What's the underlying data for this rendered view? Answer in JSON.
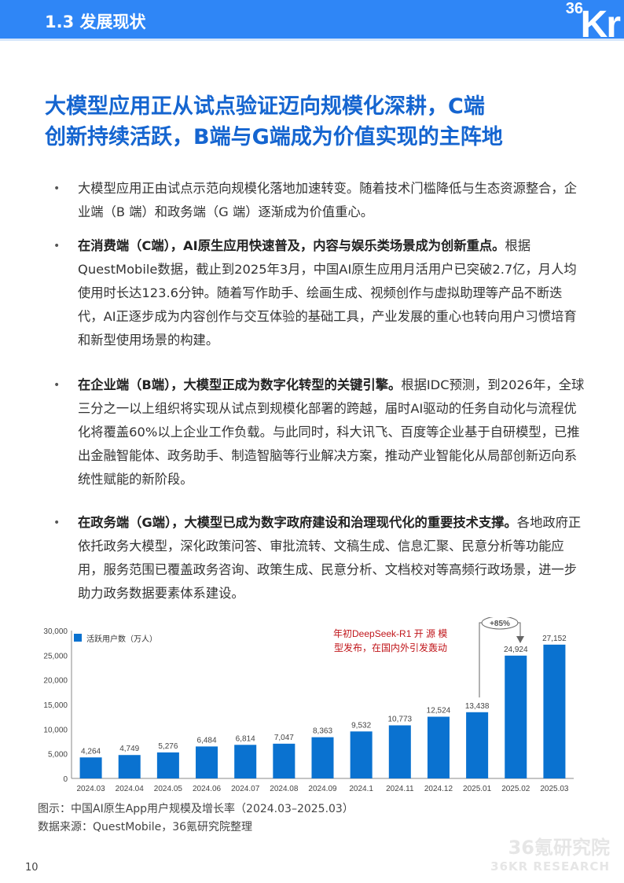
{
  "header": {
    "section": "1.3 发展现状",
    "logo": "36Kr"
  },
  "title": {
    "line1": "大模型应用正从试点验证迈向规模化深耕，C端",
    "line2": "创新持续活跃，B端与G端成为价值实现的主阵地"
  },
  "bullets": [
    {
      "bold": "",
      "text": "大模型应用正由试点示范向规模化落地加速转变。随着技术门槛降低与生态资源整合，企业端（B 端）和政务端（G 端）逐渐成为价值重心。"
    },
    {
      "bold": "在消费端（C端），AI原生应用快速普及，内容与娱乐类场景成为创新重点。",
      "text": "根据QuestMobile数据，截止到2025年3月，中国AI原生应用月活用户已突破2.7亿，月人均使用时长达123.6分钟。随着写作助手、绘画生成、视频创作与虚拟助理等产品不断迭代，AI正逐步成为内容创作与交互体验的基础工具，产业发展的重心也转向用户习惯培育和新型使用场景的构建。"
    },
    {
      "bold": "在企业端（B端），大模型正成为数字化转型的关键引擎。",
      "text": "根据IDC预测，到2026年，全球三分之一以上组织将实现从试点到规模化部署的跨越，届时AI驱动的任务自动化与流程优化将覆盖60%以上企业工作负载。与此同时，科大讯飞、百度等企业基于自研模型，已推出金融智能体、政务助手、制造智脑等行业解决方案，推动产业智能化从局部创新迈向系统性赋能的新阶段。"
    },
    {
      "bold": "在政务端（G端），大模型已成为数字政府建设和治理现代化的重要技术支撑。",
      "text": "各地政府正依托政务大模型，深化政策问答、审批流转、文稿生成、信息汇聚、民意分析等功能应用，服务范围已覆盖政务咨询、政策生成、民意分析、文档校对等高频行政场景，进一步助力政务数据要素体系建设。"
    }
  ],
  "chart_data": {
    "type": "bar",
    "categories": [
      "2024.03",
      "2024.04",
      "2024.05",
      "2024.06",
      "2024.07",
      "2024.08",
      "2024.09",
      "2024.1",
      "2024.11",
      "2024.12",
      "2025.01",
      "2025.02",
      "2025.03"
    ],
    "series": [
      {
        "name": "活跃用户数（万人）",
        "values": [
          4264,
          4749,
          5276,
          6484,
          6814,
          7047,
          8363,
          9532,
          10773,
          12524,
          13438,
          24924,
          27152
        ]
      }
    ],
    "data_labels": [
      "4,264",
      "4,749",
      "5,276",
      "6,484",
      "6,814",
      "7,047",
      "8,363",
      "9,532",
      "10,773",
      "12,524",
      "13,438",
      "24,924",
      "27,152"
    ],
    "yticks": [
      "0",
      "5,000",
      "10,000",
      "15,000",
      "20,000",
      "25,000",
      "30,000"
    ],
    "ylim": [
      0,
      30000
    ],
    "legend": "top-left",
    "annotation": {
      "line1": "年初DeepSeek-R1 开 源 模",
      "line2": "型发布，在国内外引发轰动",
      "growth": "+85%"
    },
    "colors": {
      "bar": "#0a72d0",
      "annotation": "#c0151a"
    }
  },
  "caption": {
    "figure": "图示：中国AI原生App用户规模及增长率（2024.03–2025.03）",
    "source": "数据来源：QuestMobile，36氪研究院整理"
  },
  "page_number": "10",
  "watermark": {
    "cn": "36氪研究院",
    "en": "36KR RESEARCH"
  }
}
